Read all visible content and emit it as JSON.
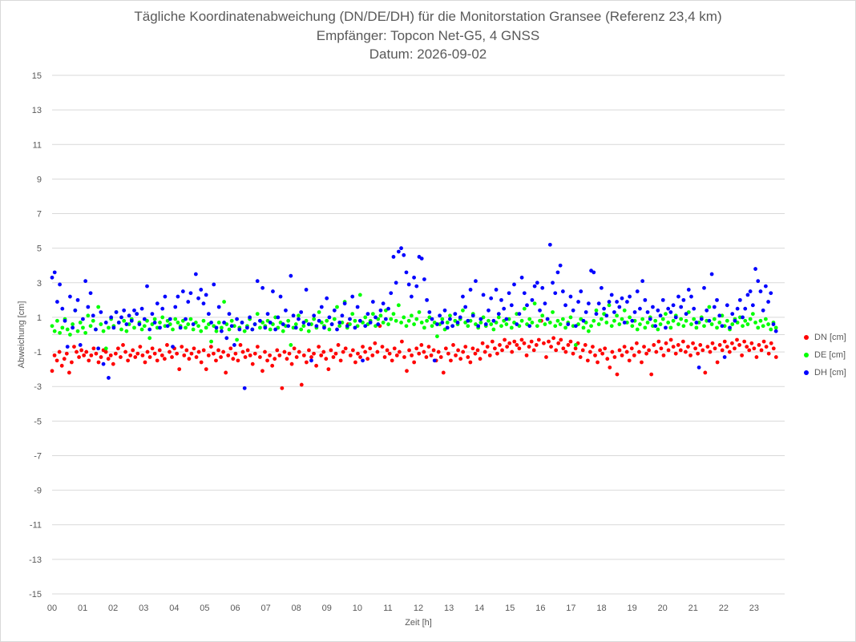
{
  "chart_data": {
    "type": "scatter",
    "title": "Tägliche Koordinatenabweichung (DN/DE/DH) für die Monitorstation Gransee (Referenz 23,4 km)",
    "subtitle": "Empfänger: Topcon Net-G5, 4 GNSS",
    "date_line": "Datum: 2026-09-02",
    "xlabel": "Zeit [h]",
    "ylabel": "Abweichung [cm]",
    "xlim": [
      0,
      24
    ],
    "ylim": [
      -15,
      15
    ],
    "x_ticks": [
      "00",
      "01",
      "02",
      "03",
      "04",
      "05",
      "06",
      "07",
      "08",
      "09",
      "10",
      "11",
      "12",
      "13",
      "14",
      "15",
      "16",
      "17",
      "18",
      "19",
      "20",
      "21",
      "22",
      "23"
    ],
    "y_ticks": [
      15,
      13,
      11,
      9,
      7,
      5,
      3,
      1,
      -1,
      -3,
      -5,
      -7,
      -9,
      -11,
      -13,
      -15
    ],
    "grid": "horizontal",
    "legend_position": "right",
    "sample_interval_h": 0.03333,
    "series": [
      {
        "name": "DN [cm]",
        "color": "#ff0000",
        "values": [
          -2.1,
          -1.2,
          -1.5,
          -1.0,
          -1.8,
          -1.4,
          -1.1,
          -2.2,
          -1.6,
          -0.7,
          -1.0,
          -1.3,
          -0.9,
          -1.2,
          -1.0,
          -1.5,
          -1.2,
          -0.8,
          -1.1,
          -1.6,
          -1.3,
          -0.9,
          -1.0,
          -1.4,
          -1.2,
          -1.7,
          -1.1,
          -0.8,
          -1.3,
          -0.6,
          -1.0,
          -1.5,
          -1.2,
          -0.9,
          -1.3,
          -1.1,
          -0.7,
          -1.2,
          -1.6,
          -1.0,
          -1.3,
          -0.8,
          -1.1,
          -1.5,
          -0.9,
          -1.2,
          -1.4,
          -0.6,
          -1.0,
          -1.3,
          -0.8,
          -1.1,
          -2.0,
          -0.7,
          -1.2,
          -0.9,
          -1.4,
          -1.1,
          -0.8,
          -1.3,
          -1.0,
          -1.6,
          -0.9,
          -2.0,
          -1.2,
          -0.7,
          -1.1,
          -1.5,
          -0.9,
          -1.3,
          -1.0,
          -2.2,
          -1.2,
          -0.8,
          -1.4,
          -1.1,
          -1.5,
          -0.6,
          -1.0,
          -1.3,
          -0.9,
          -1.2,
          -1.7,
          -1.1,
          -0.7,
          -1.3,
          -2.1,
          -1.0,
          -1.5,
          -1.2,
          -1.8,
          -1.4,
          -0.9,
          -1.2,
          -3.1,
          -1.0,
          -1.4,
          -1.1,
          -1.7,
          -0.8,
          -1.3,
          -1.0,
          -2.9,
          -1.2,
          -1.6,
          -0.9,
          -1.3,
          -1.1,
          -1.8,
          -0.7,
          -1.2,
          -1.0,
          -1.4,
          -2.0,
          -0.9,
          -1.3,
          -1.1,
          -0.6,
          -1.5,
          -1.0,
          -0.8,
          0.6,
          -1.2,
          -0.9,
          -1.6,
          -1.1,
          -1.3,
          -0.7,
          -1.0,
          -1.4,
          -0.8,
          -1.2,
          -0.5,
          -1.0,
          0.5,
          -0.7,
          -1.3,
          -0.9,
          -1.1,
          -1.5,
          -0.8,
          -1.2,
          -1.0,
          -0.4,
          -1.3,
          -2.1,
          -0.9,
          -1.2,
          -1.6,
          -0.8,
          -1.1,
          -0.6,
          -1.0,
          -1.3,
          -0.7,
          -1.2,
          -0.9,
          -1.5,
          -1.0,
          -1.3,
          -2.2,
          -0.8,
          -1.1,
          -1.5,
          -0.6,
          -1.2,
          -0.9,
          -1.4,
          -1.0,
          -0.7,
          -1.3,
          -1.6,
          -0.8,
          -1.1,
          -0.9,
          -1.4,
          -0.5,
          -1.0,
          -0.7,
          -1.2,
          -0.4,
          -0.8,
          -1.1,
          -0.6,
          -0.9,
          -0.3,
          -0.7,
          -0.5,
          -1.0,
          -0.4,
          -0.6,
          -0.8,
          -0.3,
          -0.5,
          -1.2,
          -0.7,
          -0.4,
          -0.9,
          -0.6,
          -0.3,
          0.8,
          -0.5,
          -1.3,
          -0.4,
          -0.7,
          -0.2,
          -0.9,
          -0.5,
          -0.3,
          -0.8,
          -1.0,
          -0.6,
          -0.4,
          -1.1,
          -0.8,
          -0.5,
          -1.3,
          -0.9,
          -0.6,
          -1.5,
          -1.0,
          -0.7,
          -1.2,
          -1.6,
          -0.9,
          -1.1,
          -0.8,
          -1.4,
          -1.9,
          -1.0,
          -1.3,
          -2.3,
          -0.9,
          -1.2,
          -0.7,
          -1.0,
          -1.5,
          -0.8,
          -1.2,
          -0.5,
          -1.0,
          -1.6,
          -0.7,
          -1.1,
          -0.9,
          -2.3,
          -0.6,
          -1.0,
          -0.4,
          -0.8,
          -1.2,
          -0.5,
          -0.9,
          -0.3,
          -0.7,
          -1.1,
          -0.6,
          -0.9,
          -0.4,
          -1.0,
          -0.7,
          -1.2,
          -0.5,
          -0.8,
          -1.1,
          -0.6,
          -0.9,
          -2.2,
          -0.7,
          -1.0,
          -0.5,
          -0.8,
          -1.6,
          -0.6,
          -0.9,
          -0.4,
          -0.7,
          -1.0,
          -0.5,
          -0.8,
          -0.3,
          -0.6,
          -1.2,
          -0.4,
          -0.7,
          -0.9,
          -0.5,
          -0.8,
          -1.3,
          -0.6,
          -0.9,
          -0.4,
          -0.7,
          -1.1,
          -0.5,
          -0.8,
          -1.3
        ]
      },
      {
        "name": "DE [cm]",
        "color": "#00ff00",
        "values": [
          0.5,
          0.2,
          0.8,
          0.1,
          0.4,
          0.9,
          0.3,
          0.0,
          0.6,
          1.4,
          0.2,
          0.7,
          0.4,
          0.1,
          1.1,
          0.5,
          0.8,
          0.3,
          1.6,
          0.6,
          0.2,
          -0.8,
          0.4,
          0.9,
          0.5,
          1.3,
          0.7,
          0.3,
          0.8,
          0.2,
          0.6,
          0.9,
          0.4,
          1.2,
          0.7,
          0.3,
          0.5,
          0.8,
          -0.2,
          0.6,
          0.9,
          0.4,
          0.7,
          1.0,
          0.5,
          0.8,
          0.6,
          0.3,
          0.9,
          0.7,
          0.5,
          0.8,
          0.4,
          0.6,
          0.9,
          0.3,
          0.7,
          0.5,
          0.2,
          0.8,
          0.4,
          0.6,
          -0.4,
          0.5,
          0.2,
          0.7,
          0.4,
          1.9,
          0.6,
          0.3,
          0.8,
          0.5,
          -0.3,
          0.4,
          0.7,
          0.2,
          0.5,
          0.9,
          0.3,
          0.6,
          1.2,
          0.4,
          0.7,
          0.5,
          0.8,
          0.3,
          0.6,
          1.0,
          0.4,
          0.7,
          0.2,
          0.5,
          0.8,
          -0.6,
          0.4,
          0.6,
          1.1,
          0.3,
          0.5,
          0.8,
          0.2,
          0.6,
          0.9,
          0.4,
          1.3,
          0.7,
          0.5,
          0.8,
          0.3,
          0.6,
          0.9,
          1.6,
          0.5,
          0.7,
          1.9,
          0.4,
          0.6,
          1.2,
          0.8,
          0.5,
          2.3,
          0.7,
          1.0,
          0.6,
          0.8,
          1.2,
          0.5,
          0.9,
          1.1,
          0.7,
          1.4,
          0.6,
          0.9,
          1.2,
          0.8,
          1.7,
          0.7,
          1.0,
          0.5,
          0.8,
          1.1,
          0.6,
          0.9,
          1.3,
          0.7,
          0.4,
          0.8,
          1.0,
          0.5,
          0.7,
          -0.1,
          0.6,
          0.9,
          0.3,
          0.7,
          1.1,
          0.5,
          0.8,
          0.6,
          0.9,
          1.4,
          0.7,
          0.5,
          0.8,
          1.2,
          0.6,
          0.4,
          0.7,
          1.0,
          0.5,
          0.8,
          0.6,
          0.3,
          0.7,
          1.0,
          0.5,
          0.8,
          0.6,
          0.9,
          0.4,
          0.7,
          1.2,
          0.5,
          0.8,
          1.5,
          0.6,
          0.9,
          0.7,
          1.8,
          0.5,
          0.8,
          1.1,
          0.6,
          0.9,
          0.7,
          1.3,
          0.5,
          0.8,
          0.6,
          0.9,
          0.4,
          0.7,
          1.0,
          0.5,
          -0.6,
          0.6,
          0.9,
          0.4,
          0.7,
          0.2,
          0.5,
          0.8,
          1.4,
          0.6,
          0.9,
          1.2,
          0.7,
          1.7,
          0.5,
          0.8,
          1.1,
          0.6,
          0.9,
          1.4,
          0.7,
          1.0,
          0.5,
          0.8,
          0.3,
          0.6,
          0.9,
          0.4,
          0.7,
          1.0,
          0.5,
          0.8,
          0.3,
          0.6,
          0.9,
          1.2,
          0.7,
          0.4,
          0.8,
          1.1,
          0.6,
          0.9,
          0.5,
          0.8,
          1.3,
          0.6,
          0.9,
          0.4,
          0.7,
          1.0,
          0.5,
          0.8,
          1.6,
          0.6,
          0.9,
          0.4,
          0.7,
          1.1,
          0.5,
          0.8,
          0.3,
          0.6,
          0.9,
          0.7,
          1.0,
          0.5,
          0.8,
          0.6,
          0.9,
          1.2,
          0.7,
          0.4,
          0.8,
          0.5,
          0.9,
          0.6,
          0.3,
          0.7,
          0.4
        ]
      },
      {
        "name": "DH [cm]",
        "color": "#0000ff",
        "values": [
          3.3,
          3.6,
          1.9,
          2.9,
          1.5,
          0.8,
          -0.7,
          2.2,
          0.4,
          1.4,
          2.0,
          -0.6,
          0.9,
          3.1,
          1.6,
          2.4,
          1.1,
          0.3,
          -0.8,
          1.3,
          -1.7,
          0.7,
          -2.5,
          1.0,
          0.4,
          1.3,
          0.7,
          1.0,
          1.4,
          0.6,
          1.1,
          0.8,
          1.4,
          1.2,
          0.6,
          1.5,
          0.9,
          2.8,
          0.3,
          1.2,
          0.7,
          1.8,
          0.4,
          1.5,
          2.2,
          0.5,
          0.9,
          -0.7,
          1.6,
          2.2,
          0.4,
          2.5,
          0.9,
          1.9,
          2.4,
          0.6,
          3.5,
          2.1,
          2.6,
          1.8,
          2.3,
          1.2,
          0.7,
          2.9,
          0.4,
          1.6,
          0.2,
          0.7,
          -0.2,
          1.2,
          0.5,
          -0.6,
          0.9,
          0.3,
          0.7,
          -3.1,
          0.4,
          1.0,
          0.3,
          0.6,
          3.1,
          0.8,
          2.7,
          0.4,
          1.2,
          0.7,
          2.5,
          0.3,
          1.0,
          2.2,
          0.6,
          1.4,
          0.5,
          3.4,
          1.1,
          0.4,
          0.9,
          1.3,
          0.7,
          2.6,
          0.6,
          -1.5,
          1.1,
          0.5,
          0.8,
          1.6,
          0.4,
          2.1,
          1.0,
          0.6,
          1.4,
          0.3,
          0.7,
          1.1,
          1.8,
          0.5,
          0.9,
          2.2,
          0.4,
          1.6,
          0.8,
          -1.5,
          0.5,
          1.2,
          0.7,
          1.9,
          1.0,
          0.6,
          1.4,
          1.8,
          0.9,
          1.5,
          2.4,
          4.5,
          3.0,
          4.8,
          5.0,
          4.6,
          3.6,
          2.9,
          2.2,
          3.3,
          2.8,
          4.5,
          4.4,
          3.2,
          2.0,
          1.3,
          0.9,
          -1.5,
          0.6,
          1.1,
          0.7,
          1.4,
          0.4,
          0.9,
          0.5,
          1.2,
          0.7,
          1.0,
          2.2,
          1.6,
          0.8,
          2.6,
          1.1,
          3.1,
          0.5,
          0.9,
          2.3,
          0.6,
          1.4,
          2.1,
          0.8,
          2.6,
          1.2,
          2.0,
          1.5,
          0.9,
          2.4,
          1.7,
          2.9,
          0.6,
          1.2,
          3.3,
          2.4,
          1.7,
          0.5,
          2.0,
          2.8,
          3.0,
          1.4,
          2.7,
          1.8,
          0.9,
          5.2,
          3.0,
          2.4,
          3.6,
          4.0,
          2.5,
          1.7,
          0.6,
          2.2,
          1.4,
          0.5,
          1.9,
          2.5,
          0.8,
          1.3,
          1.8,
          3.7,
          3.6,
          1.2,
          1.8,
          2.7,
          1.5,
          1.1,
          1.9,
          2.3,
          1.3,
          1.9,
          1.6,
          2.1,
          0.7,
          1.9,
          2.2,
          0.8,
          1.3,
          2.5,
          1.5,
          3.1,
          2.0,
          1.3,
          0.9,
          1.6,
          0.5,
          1.4,
          1.1,
          2.0,
          0.4,
          1.5,
          1.3,
          1.7,
          1.0,
          2.2,
          1.6,
          2.0,
          1.2,
          2.6,
          2.2,
          1.5,
          0.7,
          -1.9,
          0.9,
          2.7,
          1.4,
          0.8,
          3.5,
          1.6,
          2.0,
          1.1,
          0.5,
          -1.3,
          1.7,
          0.4,
          1.2,
          0.8,
          1.5,
          2.0,
          1.0,
          1.5,
          2.3,
          2.5,
          1.7,
          3.8,
          3.1,
          2.5,
          1.4,
          2.8,
          1.9,
          2.4,
          0.6,
          0.2
        ]
      }
    ]
  }
}
